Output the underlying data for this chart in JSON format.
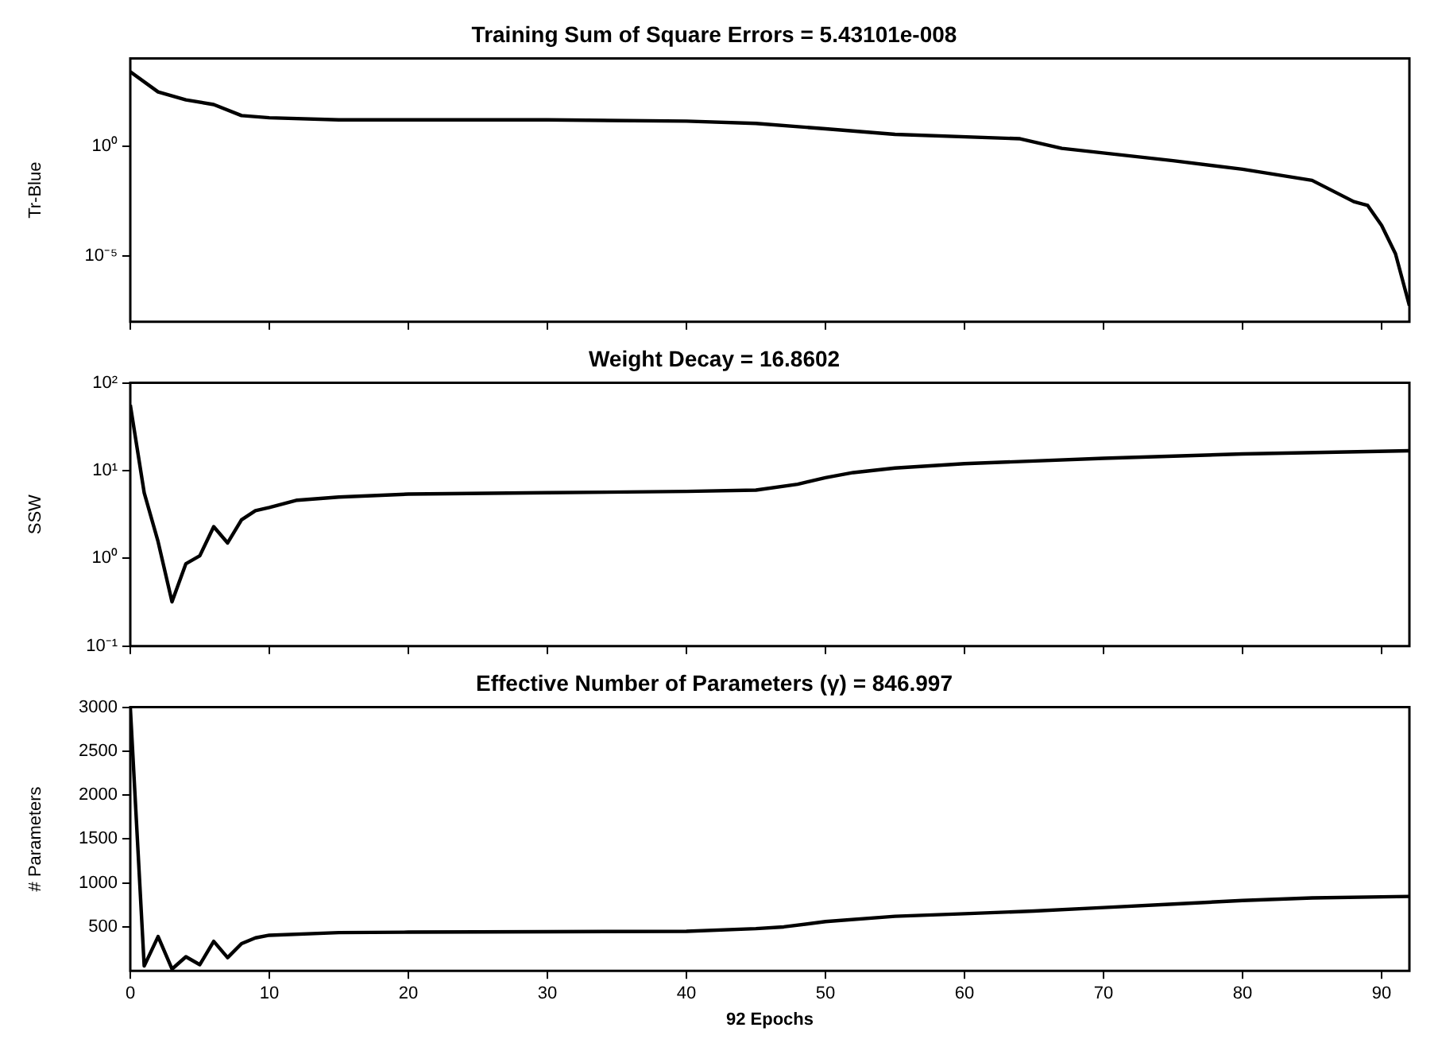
{
  "chart_data": [
    {
      "type": "line",
      "title": "Training Sum of Square Errors = 5.43101e-008",
      "ylabel": "Tr-Blue",
      "color": "#000000",
      "log": "y",
      "grid": false,
      "tick_labels": "y",
      "xlim": [
        0,
        92
      ],
      "xticks": [
        0,
        10,
        20,
        30,
        40,
        50,
        60,
        70,
        80,
        90
      ],
      "ylim": [
        1e-08,
        10000
      ],
      "yticks": [
        {
          "value": 1,
          "label": "10⁰"
        },
        {
          "value": 1e-05,
          "label": "10⁻⁵"
        }
      ],
      "x": [
        0,
        2,
        4,
        6,
        8,
        10,
        15,
        20,
        30,
        40,
        45,
        50,
        55,
        64,
        67,
        75,
        80,
        85,
        88,
        89,
        90,
        91,
        92
      ],
      "values": [
        2500,
        300,
        130,
        80,
        25,
        20,
        16,
        16,
        16,
        14,
        11,
        6.3,
        3.5,
        2.2,
        0.8,
        0.22,
        0.09,
        0.028,
        0.003,
        0.002,
        0.00025,
        1.26e-05,
        5.43e-08
      ]
    },
    {
      "type": "line",
      "title": "Weight Decay = 16.8602",
      "ylabel": "SSW",
      "color": "#000000",
      "log": "y",
      "grid": false,
      "tick_labels": "y",
      "xlim": [
        0,
        92
      ],
      "xticks": [
        0,
        10,
        20,
        30,
        40,
        50,
        60,
        70,
        80,
        90
      ],
      "ylim": [
        0.1,
        100
      ],
      "yticks": [
        {
          "value": 100,
          "label": "10²"
        },
        {
          "value": 10,
          "label": "10¹"
        },
        {
          "value": 1,
          "label": "10⁰"
        },
        {
          "value": 0.1,
          "label": "10⁻¹"
        }
      ],
      "x": [
        0,
        1,
        2,
        3,
        4,
        5,
        6,
        7,
        8,
        9,
        10,
        12,
        15,
        20,
        30,
        40,
        45,
        48,
        50,
        52,
        55,
        60,
        70,
        80,
        92
      ],
      "values": [
        56,
        5.6,
        1.55,
        0.32,
        0.87,
        1.07,
        2.3,
        1.5,
        2.75,
        3.5,
        3.8,
        4.6,
        5,
        5.4,
        5.6,
        5.8,
        6,
        7,
        8.3,
        9.5,
        10.7,
        12,
        13.8,
        15.5,
        16.86
      ]
    },
    {
      "type": "line",
      "title": "Effective Number of Parameters (γ) = 846.997",
      "ylabel": "# Parameters",
      "xlabel": "92 Epochs",
      "color": "#000000",
      "grid": false,
      "xlim": [
        0,
        92
      ],
      "xticks": [
        0,
        10,
        20,
        30,
        40,
        50,
        60,
        70,
        80,
        90
      ],
      "ylim": [
        0,
        3000
      ],
      "yticks": [
        500,
        1000,
        1500,
        2000,
        2500,
        3000
      ],
      "x": [
        0,
        1,
        2,
        3,
        4,
        5,
        6,
        7,
        8,
        9,
        10,
        15,
        20,
        30,
        40,
        45,
        47,
        50,
        55,
        60,
        65,
        70,
        75,
        80,
        85,
        92
      ],
      "values": [
        3000,
        55,
        390,
        20,
        160,
        70,
        335,
        150,
        310,
        375,
        405,
        435,
        440,
        445,
        450,
        480,
        500,
        560,
        620,
        650,
        680,
        720,
        760,
        800,
        830,
        847
      ]
    }
  ]
}
